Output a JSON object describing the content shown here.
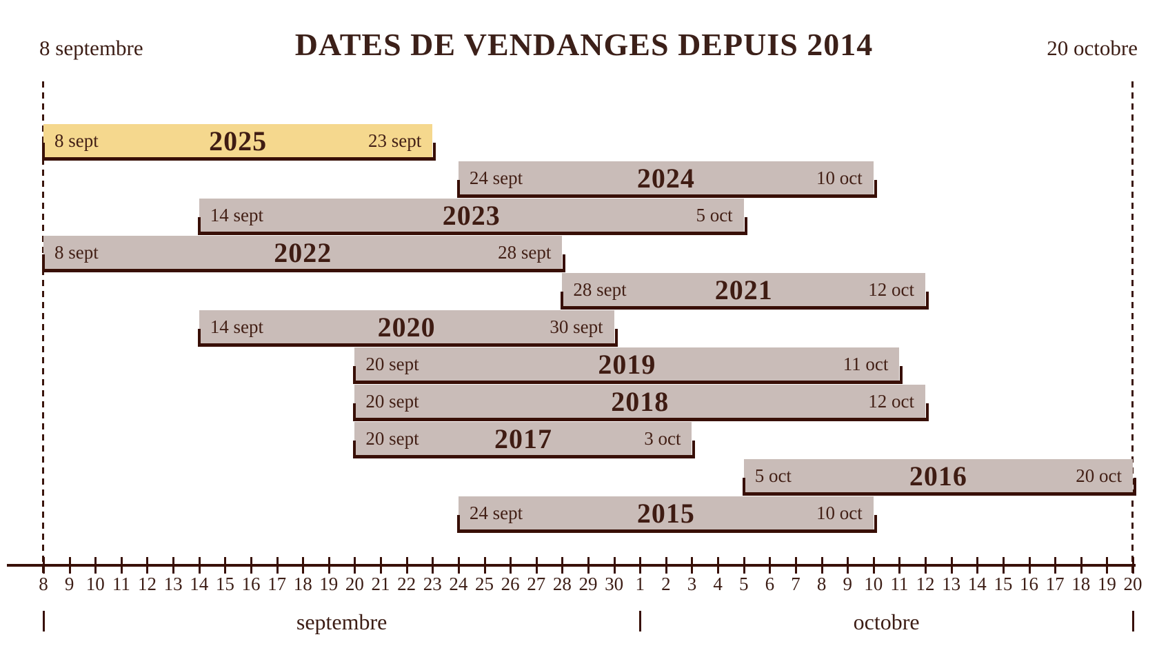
{
  "title": "DATES DE VENDANGES DEPUIS 2014",
  "range_labels": {
    "start": "8 septembre",
    "end": "20 octobre"
  },
  "colors": {
    "ink": "#3f2017",
    "line": "#380f06",
    "bar_fill": "#c9bcb8",
    "highlight_fill": "#f5d88e",
    "background": "#ffffff"
  },
  "chart_data": {
    "type": "bar",
    "subtype": "timeline-gantt",
    "title": "DATES DE VENDANGES DEPUIS 2014",
    "axis_start_label": "8 septembre",
    "axis_end_label": "20 octobre",
    "grid": false,
    "x_axis_months": [
      {
        "label": "septembre",
        "ticks": [
          8,
          9,
          10,
          11,
          12,
          13,
          14,
          15,
          16,
          17,
          18,
          19,
          20,
          21,
          22,
          23,
          24,
          25,
          26,
          27,
          28,
          29,
          30
        ]
      },
      {
        "label": "octobre",
        "ticks": [
          1,
          2,
          3,
          4,
          5,
          6,
          7,
          8,
          9,
          10,
          11,
          12,
          13,
          14,
          15,
          16,
          17,
          18,
          19,
          20
        ]
      }
    ],
    "bars": [
      {
        "year": "2025",
        "start": "8 sept",
        "end": "23 sept",
        "highlight": true
      },
      {
        "year": "2024",
        "start": "24 sept",
        "end": "10 oct",
        "highlight": false
      },
      {
        "year": "2023",
        "start": "14 sept",
        "end": "5 oct",
        "highlight": false
      },
      {
        "year": "2022",
        "start": "8 sept",
        "end": "28 sept",
        "highlight": false
      },
      {
        "year": "2021",
        "start": "28 sept",
        "end": "12 oct",
        "highlight": false
      },
      {
        "year": "2020",
        "start": "14 sept",
        "end": "30 sept",
        "highlight": false
      },
      {
        "year": "2019",
        "start": "20 sept",
        "end": "11 oct",
        "highlight": false
      },
      {
        "year": "2018",
        "start": "20 sept",
        "end": "12 oct",
        "highlight": false
      },
      {
        "year": "2017",
        "start": "20 sept",
        "end": "3 oct",
        "highlight": false
      },
      {
        "year": "2016",
        "start": "5 oct",
        "end": "20 oct",
        "highlight": false
      },
      {
        "year": "2015",
        "start": "24 sept",
        "end": "10 oct",
        "highlight": false
      }
    ]
  }
}
